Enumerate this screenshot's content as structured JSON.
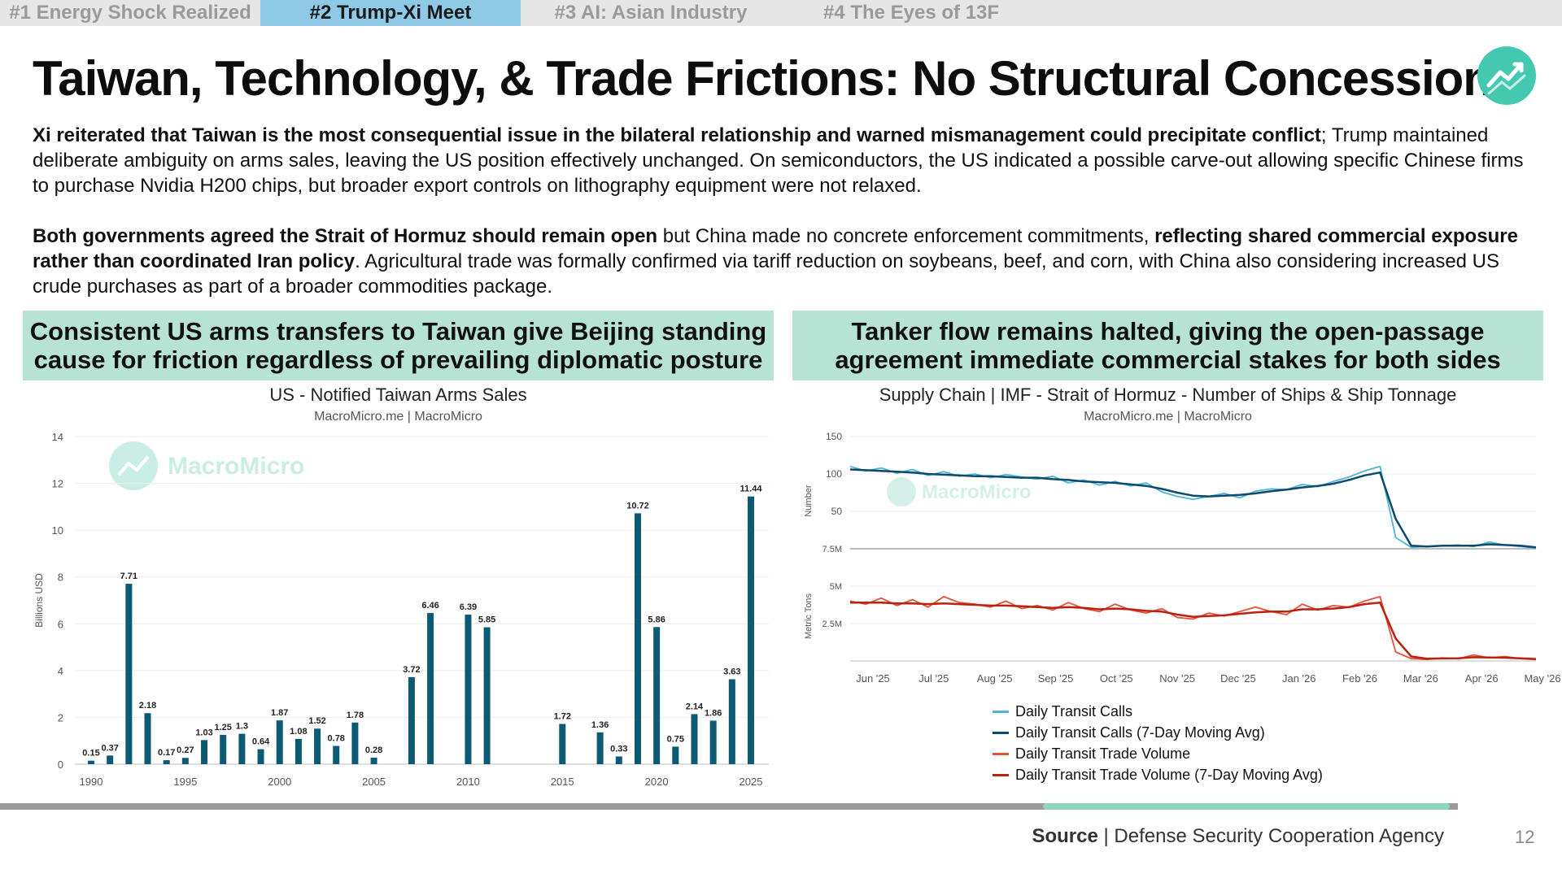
{
  "tabs": [
    {
      "label": "#1 Energy Shock Realized",
      "active": false
    },
    {
      "label": "#2 Trump-Xi Meet",
      "active": true
    },
    {
      "label": "#3 AI: Asian Industry",
      "active": false
    },
    {
      "label": "#4 The Eyes of 13F",
      "active": false
    }
  ],
  "title": "Taiwan, Technology, & Trade Frictions: No Structural Concessions",
  "logo_icon": "trend-chart-icon",
  "paragraph1": {
    "bold": "Xi reiterated that Taiwan is the most consequential issue in the bilateral relationship and warned mismanagement could precipitate conflict",
    "rest": "; Trump maintained deliberate ambiguity on arms sales, leaving the US position effectively unchanged. On semiconductors, the US indicated a possible carve-out allowing specific Chinese firms to purchase Nvidia H200 chips, but broader export controls on lithography equipment were not relaxed."
  },
  "paragraph2": {
    "bold1": "Both governments agreed the Strait of Hormuz should remain open",
    "mid": " but China made no concrete enforcement commitments, ",
    "bold2": "reflecting shared commercial exposure rather than coordinated Iran policy",
    "rest": ". Agricultural trade was formally confirmed via tariff reduction on soybeans, beef, and corn, with China also considering increased US crude purchases as part of a broader commodities package."
  },
  "left_panel": {
    "banner": "Consistent US arms transfers to Taiwan give Beijing standing cause for friction regardless of prevailing diplomatic posture",
    "watermark": "MacroMicro"
  },
  "right_panel": {
    "banner": "Tanker flow remains halted, giving the open-passage agreement immediate commercial stakes for both sides",
    "watermark": "MacroMicro"
  },
  "chart_data": [
    {
      "type": "bar",
      "title": "US - Notified Taiwan Arms Sales",
      "subtitle": "MacroMicro.me | MacroMicro",
      "ylabel": "Billions USD",
      "xlabel": "",
      "ylim": [
        0,
        14
      ],
      "yticks": [
        0,
        2,
        4,
        6,
        8,
        10,
        12,
        14
      ],
      "xticks": [
        1990,
        1995,
        2000,
        2005,
        2010,
        2015,
        2020,
        2025
      ],
      "color": "#0d5a73",
      "bars": [
        {
          "year": 1990,
          "value": 0.15
        },
        {
          "year": 1991,
          "value": 0.37
        },
        {
          "year": 1992,
          "value": 7.71
        },
        {
          "year": 1993,
          "value": 2.18
        },
        {
          "year": 1994,
          "value": 0.17
        },
        {
          "year": 1995,
          "value": 0.27
        },
        {
          "year": 1996,
          "value": 1.03
        },
        {
          "year": 1997,
          "value": 1.25
        },
        {
          "year": 1998,
          "value": 1.3
        },
        {
          "year": 1999,
          "value": 0.64
        },
        {
          "year": 2000,
          "value": 1.87
        },
        {
          "year": 2001,
          "value": 1.08
        },
        {
          "year": 2002,
          "value": 1.52
        },
        {
          "year": 2003,
          "value": 0.78
        },
        {
          "year": 2004,
          "value": 1.78
        },
        {
          "year": 2005,
          "value": 0.28
        },
        {
          "year": 2007,
          "value": 3.72
        },
        {
          "year": 2008,
          "value": 6.46
        },
        {
          "year": 2010,
          "value": 6.39
        },
        {
          "year": 2011,
          "value": 5.85
        },
        {
          "year": 2015,
          "value": 1.72
        },
        {
          "year": 2017,
          "value": 1.36
        },
        {
          "year": 2018,
          "value": 0.33
        },
        {
          "year": 2019,
          "value": 10.72
        },
        {
          "year": 2020,
          "value": 5.86
        },
        {
          "year": 2021,
          "value": 0.75
        },
        {
          "year": 2022,
          "value": 2.14
        },
        {
          "year": 2023,
          "value": 1.86
        },
        {
          "year": 2024,
          "value": 3.63
        },
        {
          "year": 2025,
          "value": 11.44
        }
      ]
    },
    {
      "type": "line",
      "title": "Supply Chain | IMF - Strait of Hormuz - Number of Ships & Ship Tonnage",
      "subtitle": "MacroMicro.me | MacroMicro",
      "x_ticks": [
        "Jun '25",
        "Jul '25",
        "Aug '25",
        "Sep '25",
        "Oct '25",
        "Nov '25",
        "Dec '25",
        "Jan '26",
        "Feb '26",
        "Mar '26",
        "Apr '26",
        "May '26"
      ],
      "panels": [
        {
          "ylabel": "Number",
          "ylim": [
            0,
            150
          ],
          "yticks": [
            50,
            100,
            150
          ]
        },
        {
          "ylabel": "Metric Tons",
          "ylim": [
            0,
            7500000
          ],
          "yticks": [
            "2.5M",
            "5M",
            "7.5M"
          ]
        }
      ],
      "series": [
        {
          "name": "Daily Transit Calls",
          "color": "#4fb3dc",
          "panel": 0,
          "values": [
            110,
            104,
            108,
            101,
            106,
            98,
            103,
            97,
            100,
            95,
            99,
            96,
            93,
            97,
            88,
            92,
            85,
            90,
            84,
            88,
            76,
            70,
            66,
            70,
            74,
            68,
            77,
            80,
            79,
            86,
            83,
            90,
            96,
            104,
            110,
            15,
            2,
            3,
            4,
            5,
            3,
            9,
            5,
            3,
            1
          ]
        },
        {
          "name": "Daily Transit Calls (7-Day Moving Avg)",
          "color": "#0d4a6b",
          "panel": 0,
          "values": [
            106,
            105,
            104,
            103,
            102,
            100,
            99,
            98,
            97,
            97,
            96,
            95,
            95,
            93,
            92,
            90,
            89,
            88,
            86,
            84,
            80,
            75,
            71,
            70,
            71,
            72,
            74,
            77,
            79,
            82,
            84,
            87,
            92,
            98,
            102,
            40,
            4,
            3,
            4,
            4,
            4,
            6,
            5,
            4,
            2
          ]
        },
        {
          "name": "Daily Transit Trade Volume",
          "color": "#e8503a",
          "panel": 1,
          "values": [
            4000000,
            3800000,
            4200000,
            3700000,
            4100000,
            3600000,
            4300000,
            3900000,
            3800000,
            3600000,
            4000000,
            3500000,
            3700000,
            3400000,
            3900000,
            3500000,
            3300000,
            3800000,
            3400000,
            3200000,
            3500000,
            2900000,
            2800000,
            3200000,
            3000000,
            3300000,
            3600000,
            3300000,
            3100000,
            3800000,
            3400000,
            3700000,
            3600000,
            4000000,
            4300000,
            600000,
            150000,
            100000,
            200000,
            150000,
            400000,
            200000,
            300000,
            150000,
            100000
          ]
        },
        {
          "name": "Daily Transit Trade Volume (7-Day Moving Avg)",
          "color": "#b8220f",
          "panel": 1,
          "values": [
            3900000,
            3900000,
            3900000,
            3850000,
            3850000,
            3800000,
            3850000,
            3800000,
            3750000,
            3700000,
            3700000,
            3650000,
            3600000,
            3550000,
            3600000,
            3550000,
            3450000,
            3500000,
            3450000,
            3350000,
            3300000,
            3100000,
            2950000,
            3000000,
            3050000,
            3150000,
            3250000,
            3300000,
            3300000,
            3450000,
            3450000,
            3500000,
            3600000,
            3800000,
            3900000,
            1500000,
            300000,
            150000,
            170000,
            180000,
            250000,
            230000,
            220000,
            180000,
            130000
          ]
        }
      ]
    }
  ],
  "source": {
    "label": "Source",
    "text": "Defense Security Cooperation Agency"
  },
  "page_number": "12",
  "progress": 0.71
}
